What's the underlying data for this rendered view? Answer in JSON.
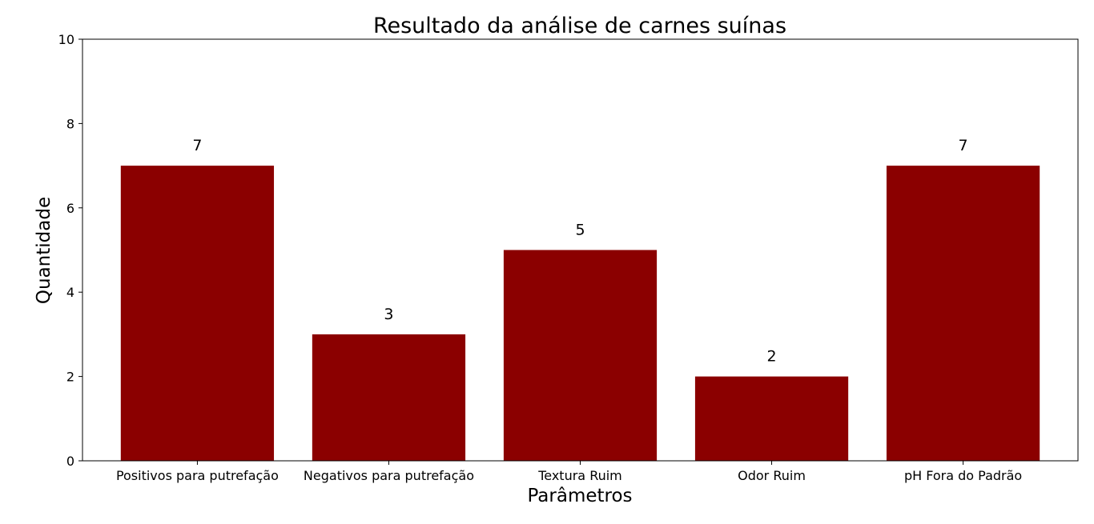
{
  "chart_data": {
    "type": "bar",
    "title": "Resultado da análise de carnes suínas",
    "xlabel": "Parâmetros",
    "ylabel": "Quantidade",
    "categories": [
      "Positivos para putrefação",
      "Negativos para putrefação",
      "Textura Ruim",
      "Odor Ruim",
      "pH Fora do Padrão"
    ],
    "values": [
      7,
      3,
      5,
      2,
      7
    ],
    "ylim": [
      0,
      10
    ],
    "yticks": [
      0,
      2,
      4,
      6,
      8,
      10
    ],
    "bar_color": "#8b0000",
    "grid": false,
    "legend": "none",
    "data_labels": true
  }
}
